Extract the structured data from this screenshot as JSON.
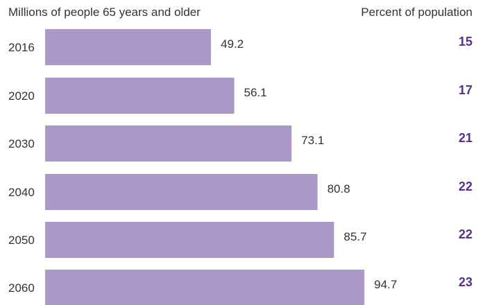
{
  "chart_data": {
    "type": "bar",
    "orientation": "horizontal",
    "left_header": "Millions of people 65 years and older",
    "right_header": "Percent of population",
    "categories": [
      "2016",
      "2020",
      "2030",
      "2040",
      "2050",
      "2060"
    ],
    "values": [
      49.2,
      56.1,
      73.1,
      80.8,
      85.7,
      94.7
    ],
    "value_labels": [
      "49.2",
      "56.1",
      "73.1",
      "80.8",
      "85.7",
      "94.7"
    ],
    "percent_of_population": [
      "15",
      "17",
      "21",
      "22",
      "22",
      "23"
    ],
    "xlim": [
      0,
      100
    ],
    "grid": false,
    "colors": {
      "bar": "#ac98c8",
      "percent_text": "#5b2d8c"
    }
  }
}
